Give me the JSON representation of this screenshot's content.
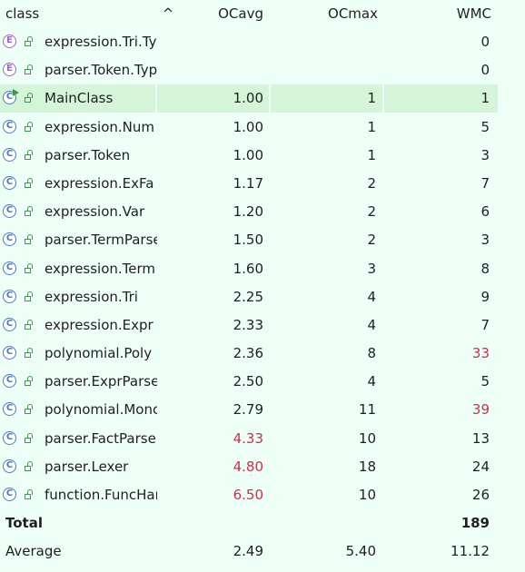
{
  "header": {
    "class_label": "class",
    "sort_indicator": "^",
    "ocavg_label": "OCavg",
    "ocmax_label": "OCmax",
    "wmc_label": "WMC"
  },
  "rows": [
    {
      "icon": "enum",
      "name": "expression.Tri.Ty",
      "ocavg": "",
      "ocmax": "",
      "wmc": "0",
      "ocavg_warn": false,
      "wmc_warn": false
    },
    {
      "icon": "enum",
      "name": "parser.Token.Typ",
      "ocavg": "",
      "ocmax": "",
      "wmc": "0",
      "ocavg_warn": false,
      "wmc_warn": false
    },
    {
      "icon": "main",
      "name": "MainClass",
      "ocavg": "1.00",
      "ocmax": "1",
      "wmc": "1",
      "ocavg_warn": false,
      "wmc_warn": false,
      "selected": true
    },
    {
      "icon": "class",
      "name": "expression.Num",
      "ocavg": "1.00",
      "ocmax": "1",
      "wmc": "5",
      "ocavg_warn": false,
      "wmc_warn": false
    },
    {
      "icon": "class",
      "name": "parser.Token",
      "ocavg": "1.00",
      "ocmax": "1",
      "wmc": "3",
      "ocavg_warn": false,
      "wmc_warn": false
    },
    {
      "icon": "class",
      "name": "expression.ExFa",
      "ocavg": "1.17",
      "ocmax": "2",
      "wmc": "7",
      "ocavg_warn": false,
      "wmc_warn": false
    },
    {
      "icon": "class",
      "name": "expression.Var",
      "ocavg": "1.20",
      "ocmax": "2",
      "wmc": "6",
      "ocavg_warn": false,
      "wmc_warn": false
    },
    {
      "icon": "class",
      "name": "parser.TermParse",
      "ocavg": "1.50",
      "ocmax": "2",
      "wmc": "3",
      "ocavg_warn": false,
      "wmc_warn": false
    },
    {
      "icon": "class",
      "name": "expression.Term",
      "ocavg": "1.60",
      "ocmax": "3",
      "wmc": "8",
      "ocavg_warn": false,
      "wmc_warn": false
    },
    {
      "icon": "class",
      "name": "expression.Tri",
      "ocavg": "2.25",
      "ocmax": "4",
      "wmc": "9",
      "ocavg_warn": false,
      "wmc_warn": false
    },
    {
      "icon": "class",
      "name": "expression.Expr",
      "ocavg": "2.33",
      "ocmax": "4",
      "wmc": "7",
      "ocavg_warn": false,
      "wmc_warn": false
    },
    {
      "icon": "class",
      "name": "polynomial.Poly",
      "ocavg": "2.36",
      "ocmax": "8",
      "wmc": "33",
      "ocavg_warn": false,
      "wmc_warn": true
    },
    {
      "icon": "class",
      "name": "parser.ExprParser",
      "ocavg": "2.50",
      "ocmax": "4",
      "wmc": "5",
      "ocavg_warn": false,
      "wmc_warn": false
    },
    {
      "icon": "class",
      "name": "polynomial.Monc",
      "ocavg": "2.79",
      "ocmax": "11",
      "wmc": "39",
      "ocavg_warn": false,
      "wmc_warn": true
    },
    {
      "icon": "class",
      "name": "parser.FactParser",
      "ocavg": "4.33",
      "ocmax": "10",
      "wmc": "13",
      "ocavg_warn": true,
      "wmc_warn": false
    },
    {
      "icon": "class",
      "name": "parser.Lexer",
      "ocavg": "4.80",
      "ocmax": "18",
      "wmc": "24",
      "ocavg_warn": true,
      "wmc_warn": false
    },
    {
      "icon": "class",
      "name": "function.FuncHar",
      "ocavg": "6.50",
      "ocmax": "10",
      "wmc": "26",
      "ocavg_warn": true,
      "wmc_warn": false
    }
  ],
  "icons": {
    "enum": {
      "letter": "E",
      "name": "enum-icon"
    },
    "class": {
      "letter": "C",
      "name": "class-icon"
    },
    "main": {
      "letter": "C",
      "name": "main-class-icon"
    },
    "visibility": "public-lock-icon"
  },
  "total": {
    "label": "Total",
    "ocavg": "",
    "ocmax": "",
    "wmc": "189"
  },
  "average": {
    "label": "Average",
    "ocavg": "2.49",
    "ocmax": "5.40",
    "wmc": "11.12"
  },
  "colors": {
    "background": "#eefff7",
    "selected": "#d4f5d8",
    "warning": "#c8324a",
    "enum": "#a064c8",
    "class": "#4a78c8",
    "public": "#3a9a4a"
  }
}
